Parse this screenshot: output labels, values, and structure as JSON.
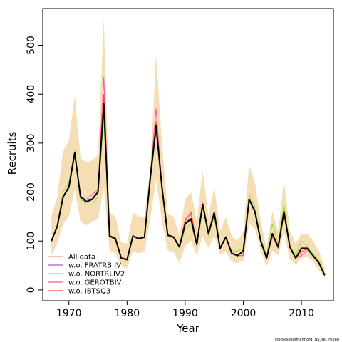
{
  "chart_data": {
    "type": "line",
    "xlabel": "Year",
    "ylabel": "Recruits",
    "xlim": [
      1965.5,
      2015.5
    ],
    "ylim": [
      -22,
      575
    ],
    "x_ticks": [
      1970,
      1980,
      1990,
      2000,
      2010
    ],
    "y_ticks": [
      0,
      100,
      200,
      300,
      400,
      500
    ],
    "grid": false,
    "legend_position": "bottom-left",
    "credit": "stockassessment.org, NS_sei, r6388",
    "x": [
      1967,
      1968,
      1969,
      1970,
      1971,
      1972,
      1973,
      1974,
      1975,
      1976,
      1977,
      1978,
      1979,
      1980,
      1981,
      1982,
      1983,
      1984,
      1985,
      1986,
      1987,
      1988,
      1989,
      1990,
      1991,
      1992,
      1993,
      1994,
      1995,
      1996,
      1997,
      1998,
      1999,
      2000,
      2001,
      2002,
      2003,
      2004,
      2005,
      2006,
      2007,
      2008,
      2009,
      2010,
      2011,
      2012,
      2013,
      2014
    ],
    "band": {
      "color": "#f5deb3",
      "upper": [
        152,
        190,
        285,
        305,
        398,
        270,
        260,
        265,
        275,
        555,
        158,
        150,
        97,
        95,
        158,
        150,
        150,
        250,
        480,
        300,
        155,
        150,
        110,
        185,
        200,
        140,
        243,
        150,
        212,
        120,
        148,
        110,
        100,
        120,
        255,
        220,
        140,
        85,
        160,
        120,
        225,
        120,
        95,
        115,
        115,
        100,
        80,
        45
      ],
      "lower": [
        70,
        95,
        135,
        150,
        205,
        140,
        132,
        140,
        145,
        210,
        80,
        75,
        48,
        45,
        78,
        75,
        78,
        145,
        225,
        140,
        80,
        78,
        55,
        90,
        100,
        70,
        110,
        85,
        112,
        72,
        80,
        58,
        55,
        60,
        135,
        125,
        80,
        48,
        80,
        70,
        120,
        62,
        52,
        65,
        68,
        58,
        40,
        25
      ]
    },
    "series": [
      {
        "name": "All data",
        "color": "#000000",
        "width": 2,
        "values": [
          100,
          130,
          190,
          210,
          280,
          190,
          180,
          185,
          200,
          380,
          110,
          105,
          65,
          62,
          110,
          105,
          108,
          230,
          335,
          210,
          112,
          108,
          88,
          135,
          145,
          93,
          175,
          115,
          158,
          85,
          108,
          75,
          70,
          80,
          185,
          160,
          100,
          65,
          115,
          88,
          160,
          88,
          65,
          85,
          85,
          70,
          55,
          30
        ]
      },
      {
        "name": "w.o. FRATRB IV",
        "color": "#9966cc",
        "width": 1,
        "values": [
          102,
          132,
          192,
          212,
          282,
          192,
          182,
          187,
          202,
          382,
          112,
          106,
          66,
          63,
          111,
          106,
          109,
          232,
          338,
          212,
          113,
          109,
          89,
          137,
          147,
          94,
          177,
          116,
          159,
          86,
          109,
          76,
          71,
          81,
          187,
          162,
          101,
          66,
          116,
          89,
          162,
          89,
          66,
          86,
          86,
          71,
          56,
          31
        ]
      },
      {
        "name": "w.o. NORTRLIV2",
        "color": "#99dd33",
        "width": 1,
        "values": [
          98,
          135,
          200,
          220,
          285,
          185,
          175,
          175,
          190,
          350,
          108,
          103,
          64,
          60,
          112,
          104,
          106,
          220,
          320,
          205,
          110,
          106,
          86,
          125,
          135,
          90,
          168,
          110,
          150,
          83,
          106,
          78,
          80,
          85,
          195,
          170,
          105,
          70,
          135,
          95,
          175,
          90,
          72,
          100,
          90,
          75,
          60,
          32
        ]
      },
      {
        "name": "w.o. GEROTBIV",
        "color": "#ff55aa",
        "width": 1,
        "values": [
          100,
          130,
          190,
          210,
          282,
          192,
          185,
          195,
          205,
          435,
          112,
          106,
          67,
          63,
          110,
          106,
          108,
          238,
          370,
          212,
          113,
          109,
          89,
          145,
          155,
          95,
          178,
          118,
          160,
          86,
          108,
          76,
          72,
          75,
          182,
          158,
          99,
          64,
          108,
          85,
          158,
          86,
          66,
          70,
          82,
          70,
          55,
          30
        ]
      },
      {
        "name": "w.o. IBTSQ3",
        "color": "#ff4444",
        "width": 1,
        "values": [
          101,
          131,
          190,
          210,
          280,
          190,
          180,
          185,
          200,
          400,
          110,
          105,
          65,
          62,
          110,
          105,
          108,
          232,
          345,
          210,
          112,
          108,
          88,
          140,
          160,
          93,
          176,
          116,
          158,
          85,
          108,
          76,
          70,
          70,
          183,
          160,
          100,
          64,
          112,
          86,
          160,
          87,
          65,
          78,
          84,
          70,
          55,
          30
        ]
      }
    ]
  }
}
